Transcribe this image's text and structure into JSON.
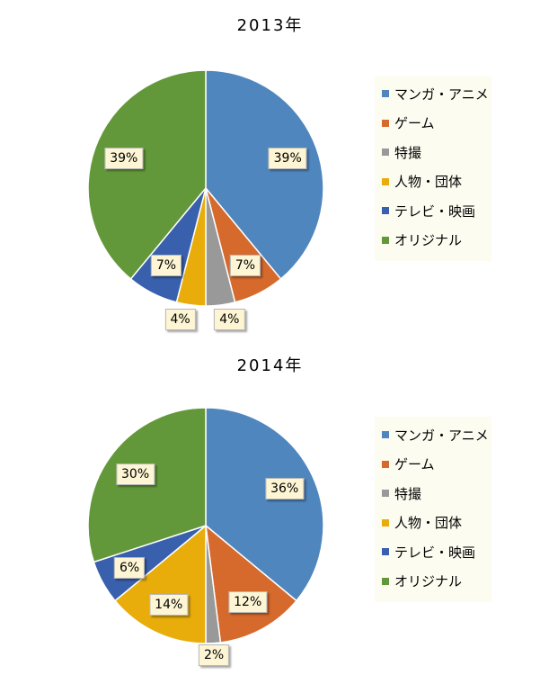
{
  "colors": {
    "manga_anime": "#4f86be",
    "game": "#d6692c",
    "tokusatsu": "#999999",
    "person_group": "#e8ad0a",
    "tv_movie": "#3960ad",
    "original": "#63983a"
  },
  "chart_data": [
    {
      "type": "pie",
      "title": "2013年",
      "categories": [
        "マンガ・アニメ",
        "ゲーム",
        "特撮",
        "人物・団体",
        "テレビ・映画",
        "オリジナル"
      ],
      "values": [
        39,
        7,
        4,
        4,
        7,
        39
      ],
      "data_labels": [
        "39%",
        "7%",
        "4%",
        "4%",
        "7%",
        "39%"
      ],
      "legend_placement": "right"
    },
    {
      "type": "pie",
      "title": "2014年",
      "categories": [
        "マンガ・アニメ",
        "ゲーム",
        "特撮",
        "人物・団体",
        "テレビ・映画",
        "オリジナル"
      ],
      "values": [
        36,
        12,
        2,
        14,
        6,
        30
      ],
      "data_labels": [
        "36%",
        "12%",
        "2%",
        "14%",
        "6%",
        "30%"
      ],
      "legend_placement": "right"
    }
  ]
}
